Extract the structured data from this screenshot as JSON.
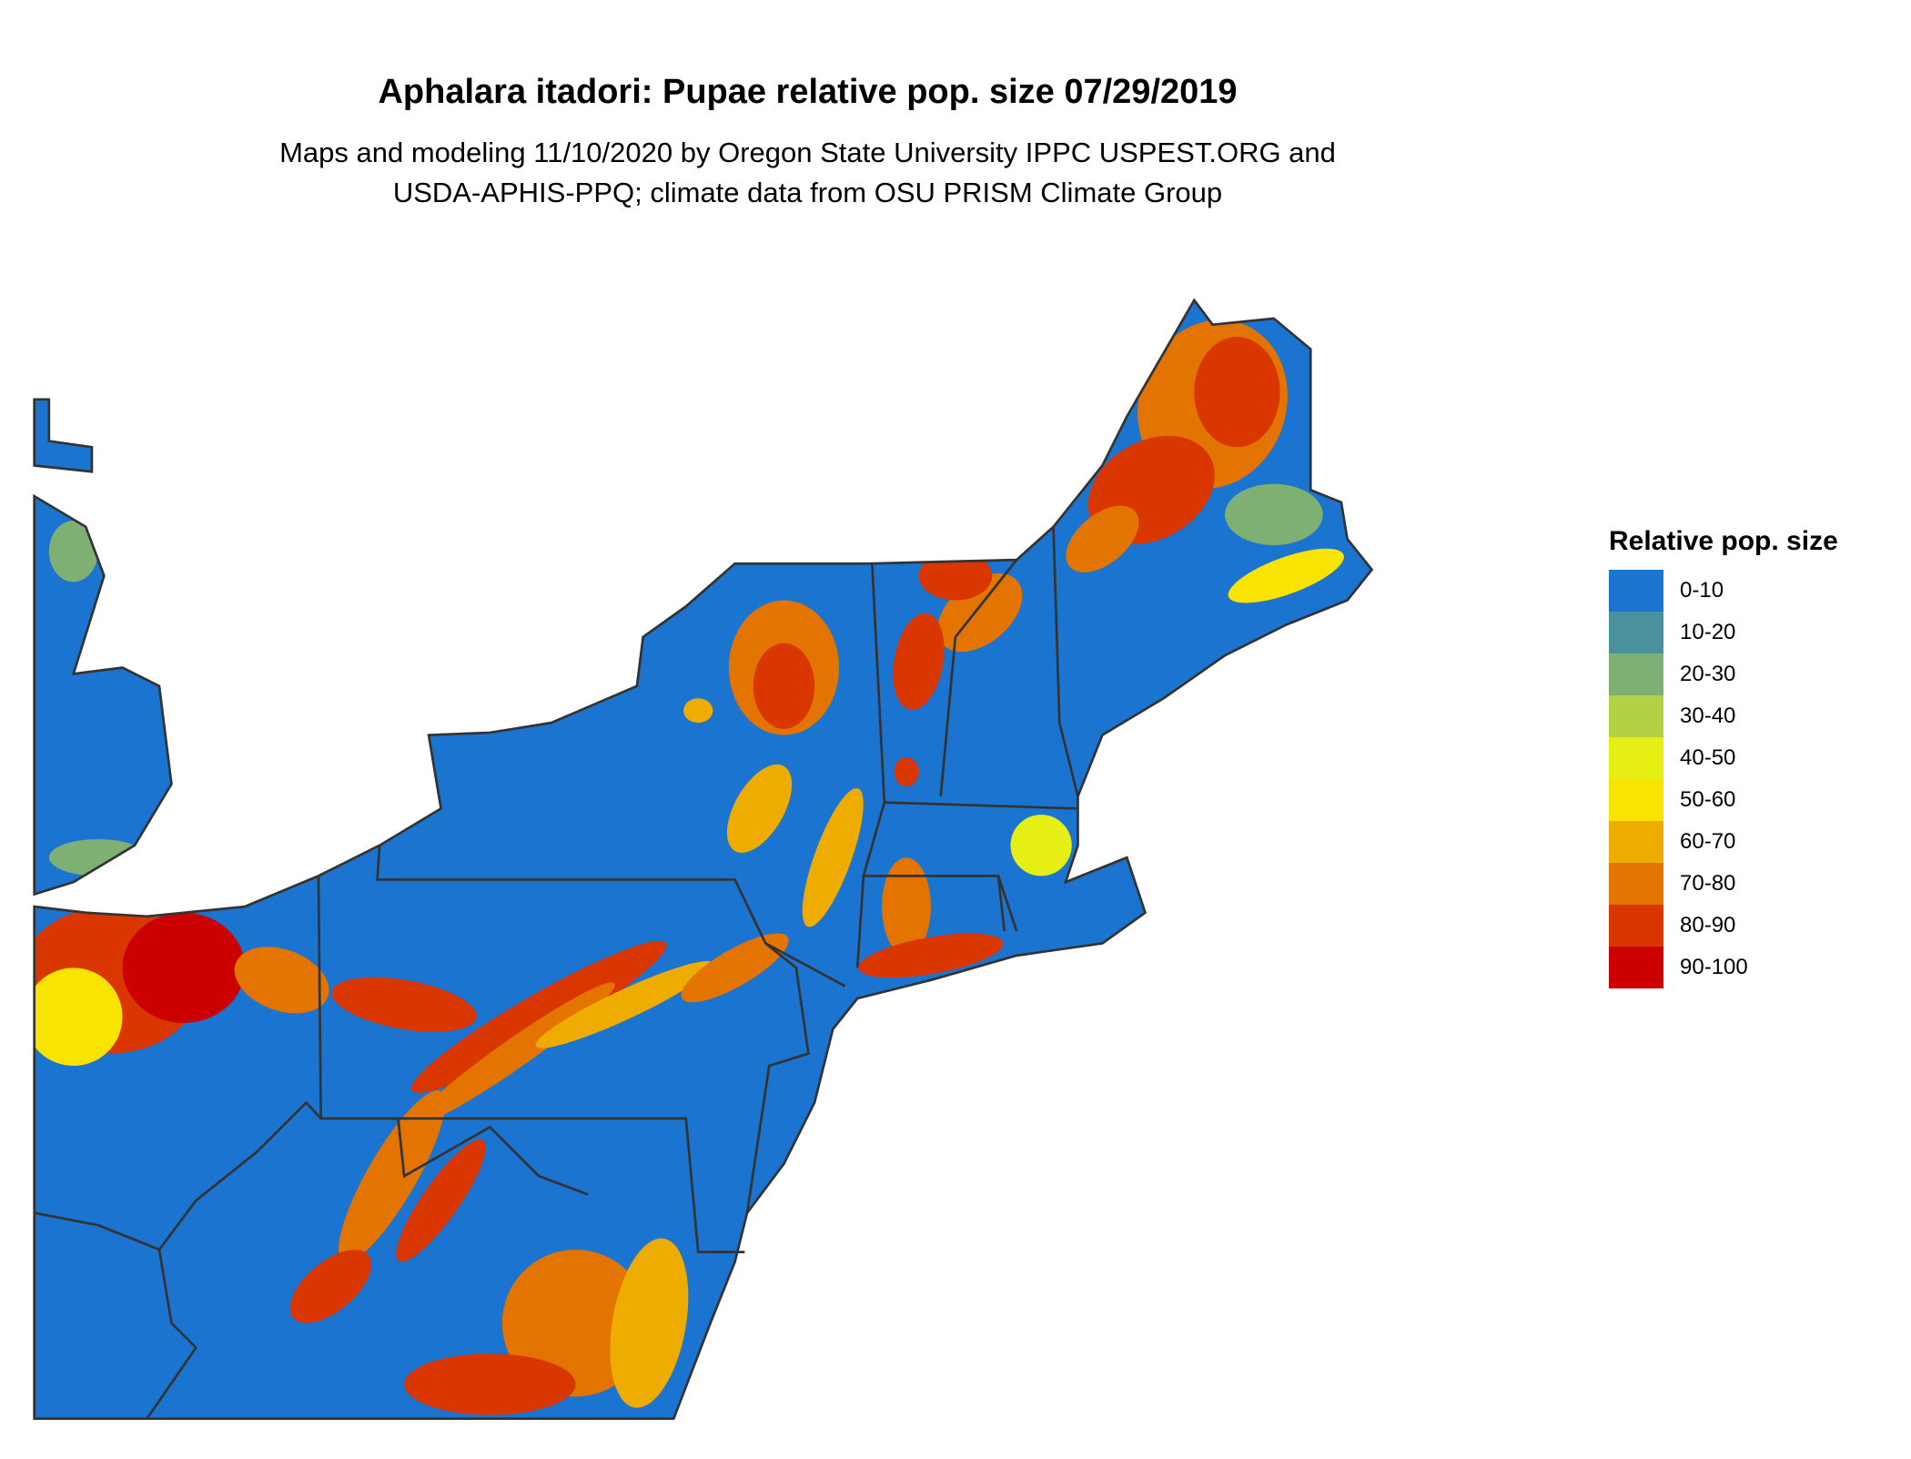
{
  "title": "Aphalara itadori: Pupae relative pop. size 07/29/2019",
  "subtitle_lines": [
    "Maps and modeling 11/10/2020 by Oregon State University IPPC USPEST.ORG and",
    "USDA-APHIS-PPQ; climate data from OSU PRISM Climate Group"
  ],
  "chart_data": {
    "type": "heatmap",
    "title": "Aphalara itadori: Pupae relative pop. size 07/29/2019",
    "legend": {
      "title": "Relative pop. size",
      "placement": "right",
      "items": [
        {
          "label": "0-10",
          "color": "#1a74d0"
        },
        {
          "label": "10-20",
          "color": "#4a919f"
        },
        {
          "label": "20-30",
          "color": "#7db072"
        },
        {
          "label": "30-40",
          "color": "#b3d144"
        },
        {
          "label": "40-50",
          "color": "#e5ef13"
        },
        {
          "label": "50-60",
          "color": "#f9e300"
        },
        {
          "label": "60-70",
          "color": "#eeab00"
        },
        {
          "label": "70-80",
          "color": "#e37400"
        },
        {
          "label": "80-90",
          "color": "#d93600"
        },
        {
          "label": "90-100",
          "color": "#cc0000"
        }
      ]
    },
    "region": "Northeastern United States",
    "state_borders": true
  }
}
